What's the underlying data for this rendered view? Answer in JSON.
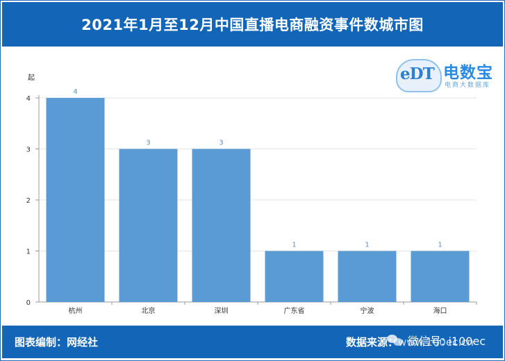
{
  "header": {
    "title": "2021年1月至12月中国直播电商融资事件数城市图"
  },
  "logo": {
    "mark": "eDT",
    "name": "电数宝",
    "subtitle": "电商大数据库"
  },
  "chart_data": {
    "type": "bar",
    "unit_label": "起",
    "categories": [
      "杭州",
      "北京",
      "深圳",
      "广东省",
      "宁波",
      "海口"
    ],
    "values": [
      4,
      3,
      3,
      1,
      1,
      1
    ],
    "ylim": [
      0,
      4
    ],
    "yticks": [
      0,
      1,
      2,
      3,
      4
    ],
    "bar_color": "#5b9bd5",
    "label_color": "#5b8fc9",
    "grid": true
  },
  "footer": {
    "left": "图表编制：网经社",
    "right_prefix": "数据来源：",
    "right_url": "www.100ec.cn"
  },
  "watermark": {
    "text": "微信号: i100ec"
  },
  "colors": {
    "brand_blue": "#1265b7"
  }
}
